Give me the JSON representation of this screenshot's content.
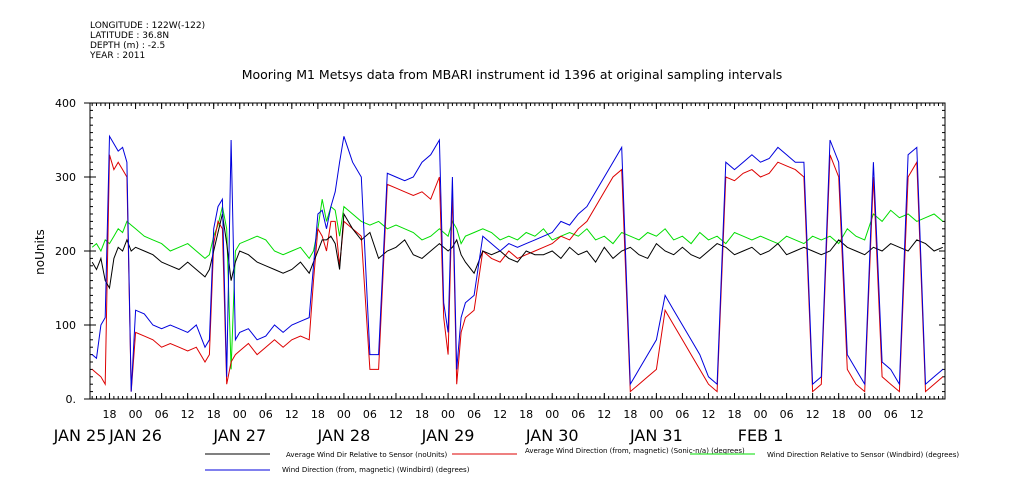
{
  "meta": {
    "longitude": "LONGITUDE : 122W(-122)",
    "latitude": "LATITUDE : 36.8N",
    "depth": "DEPTH (m) : -2.5",
    "year": "YEAR : 2011"
  },
  "chart_data": {
    "type": "line",
    "title": "Mooring M1 Metsys data from MBARI instrument id 1396 at original sampling intervals",
    "ylabel": "noUnits",
    "xlabel": "",
    "ylim": [
      0,
      400
    ],
    "y_ticks": [
      0,
      100,
      200,
      300,
      400
    ],
    "y_tick_labels": [
      "0.",
      "100",
      "200",
      "300",
      "400"
    ],
    "xlim_hours": [
      -10.5,
      186.5
    ],
    "x_ticks_hours": [
      -6,
      0,
      6,
      12,
      18,
      24,
      30,
      36,
      42,
      48,
      54,
      60,
      66,
      72,
      78,
      84,
      90,
      96,
      102,
      108,
      114,
      120,
      126,
      132,
      138,
      144,
      150,
      156,
      162,
      168,
      174,
      180
    ],
    "x_tick_labels": [
      "18",
      "00",
      "06",
      "12",
      "18",
      "00",
      "06",
      "12",
      "18",
      "00",
      "06",
      "12",
      "18",
      "00",
      "06",
      "12",
      "18",
      "00",
      "06",
      "12",
      "18",
      "00",
      "06",
      "12",
      "18",
      "00",
      "06",
      "12",
      "18",
      "00",
      "06",
      "12"
    ],
    "day_labels": [
      {
        "label": "JAN 25",
        "hour": -12
      },
      {
        "label": "JAN 26",
        "hour": 0
      },
      {
        "label": "JAN 27",
        "hour": 24
      },
      {
        "label": "JAN 28",
        "hour": 48
      },
      {
        "label": "JAN 29",
        "hour": 72
      },
      {
        "label": "JAN 30",
        "hour": 96
      },
      {
        "label": "JAN 31",
        "hour": 120
      },
      {
        "label": "FEB  1",
        "hour": 144
      }
    ],
    "x_unit": "hours from 2011-01-26 00:00",
    "series": [
      {
        "name": "Average Wind Dir Relative to Sensor (noUnits)",
        "color": "#000000",
        "x": [
          -10,
          -9,
          -8,
          -7,
          -6,
          -5,
          -4,
          -3,
          -2,
          -1,
          0,
          2,
          4,
          6,
          8,
          10,
          12,
          14,
          16,
          17,
          18,
          19,
          20,
          21,
          22,
          23,
          24,
          26,
          28,
          30,
          32,
          34,
          36,
          38,
          40,
          41,
          42,
          43,
          44,
          45,
          46,
          47,
          48,
          50,
          52,
          54,
          56,
          58,
          60,
          62,
          64,
          66,
          68,
          70,
          71,
          72,
          73,
          74,
          75,
          76,
          78,
          80,
          82,
          84,
          86,
          88,
          90,
          92,
          94,
          96,
          98,
          100,
          102,
          104,
          106,
          108,
          110,
          112,
          114,
          116,
          118,
          120,
          122,
          124,
          126,
          128,
          130,
          132,
          134,
          136,
          138,
          140,
          142,
          144,
          146,
          148,
          150,
          152,
          154,
          156,
          158,
          160,
          162,
          164,
          166,
          168,
          170,
          172,
          174,
          176,
          178,
          180,
          182,
          184,
          186
        ],
        "y": [
          185,
          175,
          190,
          160,
          150,
          190,
          205,
          200,
          215,
          200,
          205,
          200,
          195,
          185,
          180,
          175,
          185,
          175,
          165,
          175,
          200,
          225,
          250,
          210,
          160,
          185,
          200,
          195,
          185,
          180,
          175,
          170,
          175,
          185,
          170,
          185,
          200,
          215,
          215,
          220,
          210,
          175,
          250,
          230,
          215,
          225,
          190,
          200,
          205,
          215,
          195,
          190,
          200,
          210,
          205,
          200,
          205,
          215,
          195,
          185,
          170,
          200,
          195,
          200,
          190,
          185,
          200,
          195,
          195,
          200,
          190,
          205,
          195,
          200,
          185,
          205,
          190,
          200,
          205,
          195,
          190,
          210,
          200,
          195,
          205,
          195,
          190,
          200,
          210,
          205,
          195,
          200,
          205,
          195,
          200,
          210,
          195,
          200,
          205,
          200,
          195,
          200,
          215,
          205,
          200,
          195,
          205,
          200,
          210,
          205,
          200,
          215,
          210,
          200,
          205
        ]
      },
      {
        "name": "Average Wind Direction (from, magnetic) (Sonic-n/a) (degrees)",
        "color": "#dd0000",
        "x": [
          -10,
          -9,
          -8,
          -7,
          -6,
          -5,
          -4,
          -3,
          -2,
          -1,
          0,
          2,
          4,
          6,
          8,
          10,
          12,
          14,
          16,
          17,
          18,
          19,
          20,
          21,
          22,
          23,
          24,
          26,
          28,
          30,
          32,
          34,
          36,
          38,
          40,
          41,
          42,
          43,
          44,
          45,
          46,
          47,
          48,
          50,
          52,
          54,
          56,
          58,
          60,
          62,
          64,
          66,
          68,
          70,
          71,
          72,
          73,
          74,
          75,
          76,
          78,
          80,
          82,
          84,
          86,
          88,
          90,
          92,
          94,
          96,
          98,
          100,
          102,
          104,
          106,
          108,
          110,
          112,
          114,
          116,
          118,
          120,
          122,
          124,
          126,
          128,
          130,
          132,
          134,
          136,
          138,
          140,
          142,
          144,
          146,
          148,
          150,
          152,
          154,
          156,
          158,
          160,
          162,
          164,
          166,
          168,
          170,
          172,
          174,
          176,
          178,
          180,
          182,
          184,
          186
        ],
        "y": [
          40,
          35,
          30,
          20,
          330,
          310,
          320,
          310,
          300,
          10,
          90,
          85,
          80,
          70,
          75,
          70,
          65,
          70,
          50,
          60,
          210,
          240,
          230,
          20,
          50,
          60,
          65,
          75,
          60,
          70,
          80,
          70,
          80,
          85,
          80,
          160,
          230,
          220,
          200,
          240,
          240,
          180,
          240,
          230,
          220,
          40,
          40,
          290,
          285,
          280,
          275,
          280,
          270,
          300,
          110,
          60,
          280,
          20,
          90,
          110,
          120,
          200,
          190,
          185,
          200,
          190,
          195,
          200,
          205,
          210,
          220,
          215,
          230,
          240,
          260,
          280,
          300,
          310,
          10,
          20,
          30,
          40,
          120,
          100,
          80,
          60,
          40,
          20,
          10,
          300,
          295,
          305,
          310,
          300,
          305,
          320,
          315,
          310,
          300,
          10,
          20,
          330,
          300,
          40,
          20,
          10,
          300,
          30,
          20,
          10,
          300,
          320,
          10,
          20,
          30
        ]
      },
      {
        "name": "Wind Direction Relative to Sensor (Windbird) (degrees)",
        "color": "#00dd00",
        "x": [
          -10,
          -9,
          -8,
          -7,
          -6,
          -5,
          -4,
          -3,
          -2,
          -1,
          0,
          2,
          4,
          6,
          8,
          10,
          12,
          14,
          16,
          17,
          18,
          19,
          20,
          21,
          22,
          23,
          24,
          26,
          28,
          30,
          32,
          34,
          36,
          38,
          40,
          41,
          42,
          43,
          44,
          45,
          46,
          47,
          48,
          50,
          52,
          54,
          56,
          58,
          60,
          62,
          64,
          66,
          68,
          70,
          71,
          72,
          73,
          74,
          75,
          76,
          78,
          80,
          82,
          84,
          86,
          88,
          90,
          92,
          94,
          96,
          98,
          100,
          102,
          104,
          106,
          108,
          110,
          112,
          114,
          116,
          118,
          120,
          122,
          124,
          126,
          128,
          130,
          132,
          134,
          136,
          138,
          140,
          142,
          144,
          146,
          148,
          150,
          152,
          154,
          156,
          158,
          160,
          162,
          164,
          166,
          168,
          170,
          172,
          174,
          176,
          178,
          180,
          182,
          184,
          186
        ],
        "y": [
          205,
          210,
          200,
          215,
          210,
          220,
          230,
          225,
          240,
          235,
          230,
          220,
          215,
          210,
          200,
          205,
          210,
          200,
          190,
          195,
          220,
          235,
          260,
          230,
          40,
          200,
          210,
          215,
          220,
          215,
          200,
          195,
          200,
          205,
          190,
          200,
          230,
          270,
          240,
          260,
          255,
          220,
          260,
          250,
          240,
          235,
          240,
          230,
          235,
          230,
          225,
          215,
          220,
          230,
          225,
          220,
          240,
          230,
          210,
          220,
          225,
          230,
          225,
          215,
          220,
          215,
          225,
          220,
          230,
          215,
          220,
          225,
          220,
          230,
          215,
          220,
          210,
          225,
          220,
          215,
          225,
          220,
          230,
          215,
          220,
          210,
          225,
          215,
          220,
          210,
          225,
          220,
          215,
          220,
          215,
          210,
          220,
          215,
          210,
          220,
          215,
          220,
          210,
          230,
          220,
          215,
          250,
          240,
          255,
          245,
          250,
          240,
          245,
          250,
          240
        ]
      },
      {
        "name": "Wind Direction (from, magnetic) (Windbird) (degrees)",
        "color": "#0000dd",
        "x": [
          -10,
          -9,
          -8,
          -7,
          -6,
          -5,
          -4,
          -3,
          -2,
          -1,
          0,
          2,
          4,
          6,
          8,
          10,
          12,
          14,
          16,
          17,
          18,
          19,
          20,
          21,
          22,
          23,
          24,
          26,
          28,
          30,
          32,
          34,
          36,
          38,
          40,
          41,
          42,
          43,
          44,
          45,
          46,
          47,
          48,
          50,
          52,
          54,
          56,
          58,
          60,
          62,
          64,
          66,
          68,
          70,
          71,
          72,
          73,
          74,
          75,
          76,
          78,
          80,
          82,
          84,
          86,
          88,
          90,
          92,
          94,
          96,
          98,
          100,
          102,
          104,
          106,
          108,
          110,
          112,
          114,
          116,
          118,
          120,
          122,
          124,
          126,
          128,
          130,
          132,
          134,
          136,
          138,
          140,
          142,
          144,
          146,
          148,
          150,
          152,
          154,
          156,
          158,
          160,
          162,
          164,
          166,
          168,
          170,
          172,
          174,
          176,
          178,
          180,
          182,
          184,
          186
        ],
        "y": [
          60,
          55,
          100,
          110,
          355,
          345,
          335,
          340,
          320,
          10,
          120,
          115,
          100,
          95,
          100,
          95,
          90,
          100,
          70,
          80,
          230,
          260,
          270,
          30,
          350,
          80,
          90,
          95,
          80,
          85,
          100,
          90,
          100,
          105,
          110,
          180,
          250,
          255,
          230,
          260,
          280,
          320,
          355,
          320,
          300,
          60,
          60,
          305,
          300,
          295,
          300,
          320,
          330,
          350,
          130,
          90,
          300,
          40,
          110,
          130,
          140,
          220,
          210,
          200,
          210,
          205,
          210,
          215,
          220,
          225,
          240,
          235,
          250,
          260,
          280,
          300,
          320,
          340,
          20,
          40,
          60,
          80,
          140,
          120,
          100,
          80,
          60,
          30,
          20,
          320,
          310,
          320,
          330,
          320,
          325,
          340,
          330,
          320,
          320,
          20,
          30,
          350,
          320,
          60,
          40,
          20,
          320,
          50,
          40,
          20,
          330,
          340,
          20,
          30,
          40
        ]
      }
    ],
    "legend_placement": "bottom"
  }
}
